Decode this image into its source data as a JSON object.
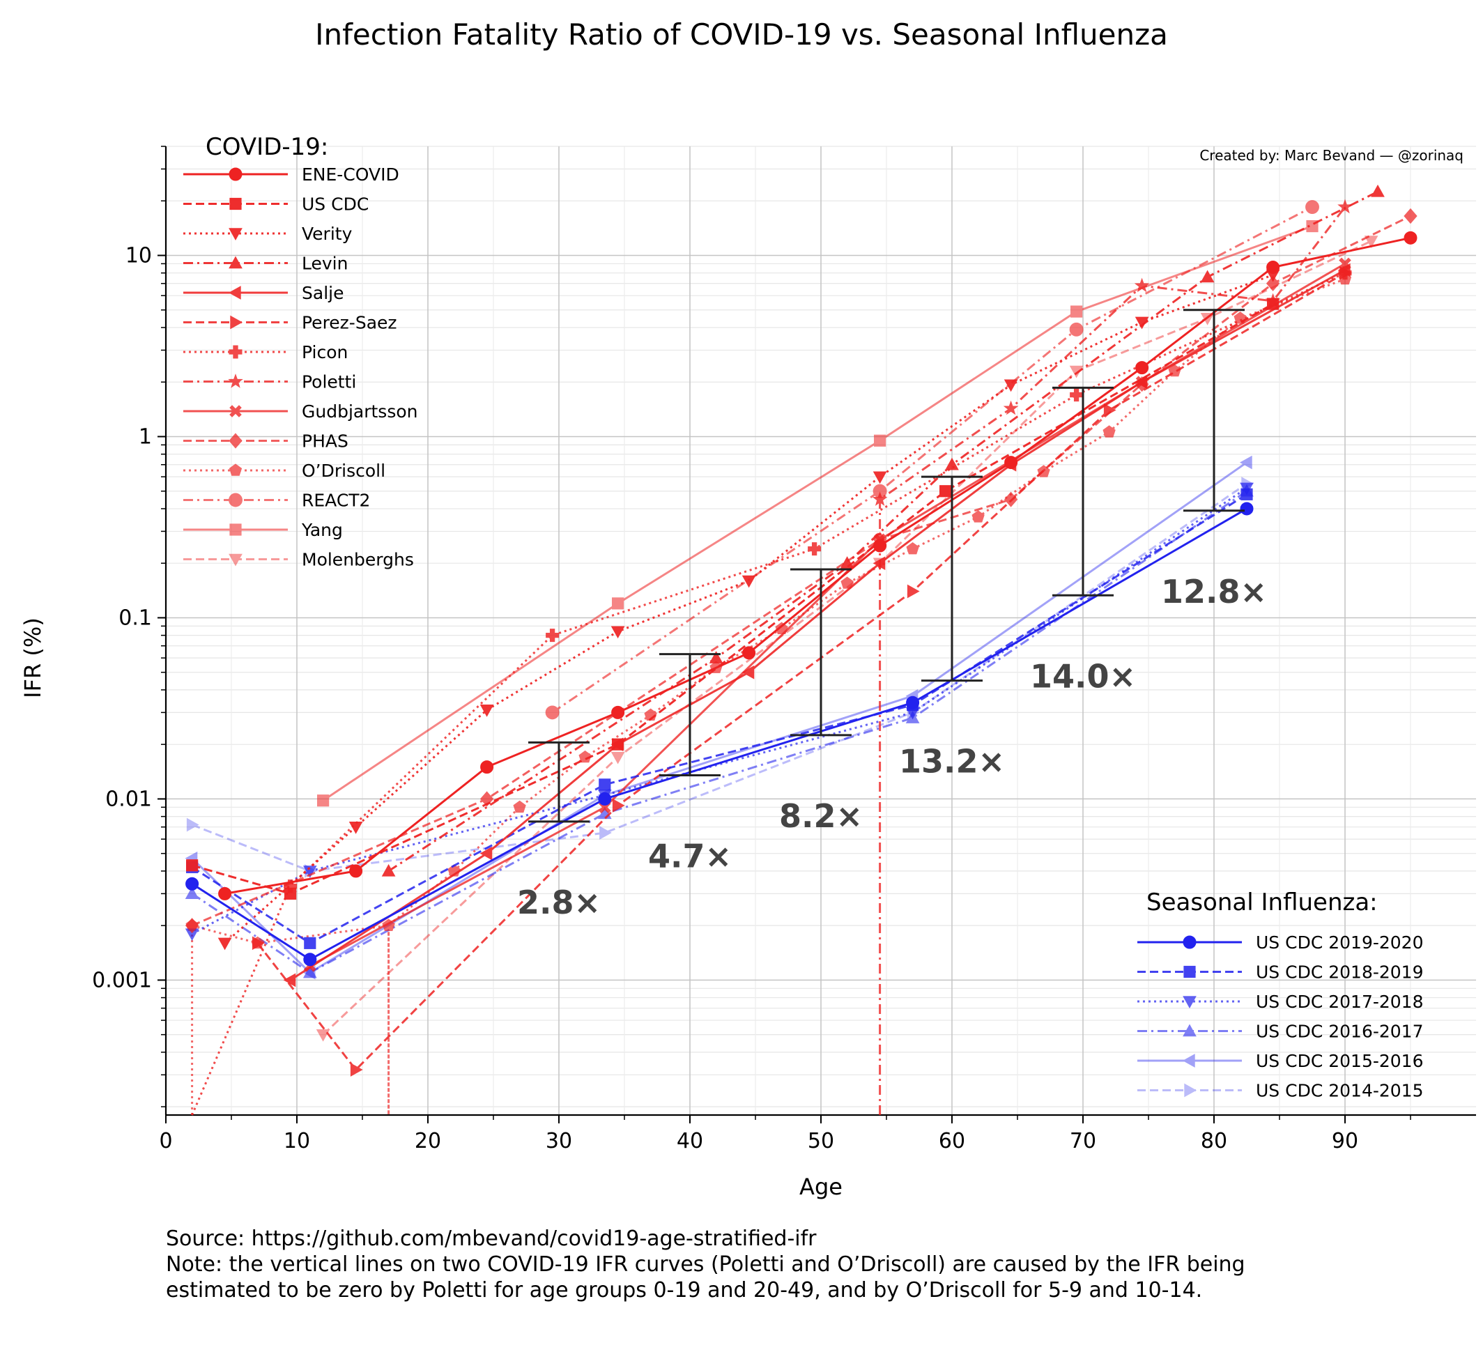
{
  "chart_data": {
    "type": "line",
    "title": "Infection Fatality Ratio of COVID-19 vs. Seasonal Influenza",
    "xlabel": "Age",
    "ylabel": "IFR (%)",
    "xlim": [
      0,
      100
    ],
    "ylim": [
      0.00018,
      40
    ],
    "yscale": "log",
    "grid": "on",
    "xticks": [
      0,
      10,
      20,
      30,
      40,
      50,
      60,
      70,
      80,
      90
    ],
    "xtick_labels": [
      "0",
      "10",
      "20",
      "30",
      "40",
      "50",
      "60",
      "70",
      "80",
      "90"
    ],
    "yticks": [
      0.001,
      0.01,
      0.1,
      1,
      10
    ],
    "ytick_labels": [
      "0.001",
      "0.01",
      "0.1",
      "1",
      "10"
    ],
    "credit": "Created by: Marc Bevand — @zorinaq",
    "legend_covid_title": "COVID-19:",
    "legend_flu_title": "Seasonal Influenza:",
    "legend_placement": {
      "covid": "upper-left",
      "flu": "lower-right"
    },
    "colors": {
      "covid": "#ee2222",
      "flu": "#2222ee",
      "ratio_bar": "#222222",
      "ratio_text": "#444444"
    },
    "series": [
      {
        "name": "ENE-COVID",
        "group": "covid",
        "marker": "circle",
        "dash": "solid",
        "alpha": 1.0,
        "points": [
          [
            4.5,
            0.003
          ],
          [
            14.5,
            0.004
          ],
          [
            24.5,
            0.015
          ],
          [
            34.5,
            0.03
          ],
          [
            44.5,
            0.064
          ],
          [
            54.5,
            0.25
          ],
          [
            64.5,
            0.72
          ],
          [
            74.5,
            2.4
          ],
          [
            84.5,
            8.6
          ],
          [
            95,
            12.5
          ]
        ]
      },
      {
        "name": "US CDC",
        "group": "covid",
        "marker": "square",
        "dash": "dashed",
        "alpha": 0.95,
        "points": [
          [
            2,
            0.0043
          ],
          [
            9.5,
            0.003
          ],
          [
            34.5,
            0.02
          ],
          [
            59.5,
            0.5
          ],
          [
            84.5,
            5.4
          ]
        ]
      },
      {
        "name": "Verity",
        "group": "covid",
        "marker": "tri-down",
        "dash": "dotted",
        "alpha": 0.92,
        "points": [
          [
            4.5,
            0.0016
          ],
          [
            14.5,
            0.007
          ],
          [
            24.5,
            0.031
          ],
          [
            34.5,
            0.084
          ],
          [
            44.5,
            0.16
          ],
          [
            54.5,
            0.6
          ],
          [
            64.5,
            1.93
          ],
          [
            74.5,
            4.28
          ],
          [
            84.5,
            7.8
          ]
        ]
      },
      {
        "name": "Levin",
        "group": "covid",
        "marker": "tri-up",
        "dash": "dashdot",
        "alpha": 0.9,
        "points": [
          [
            17,
            0.004
          ],
          [
            42,
            0.06
          ],
          [
            52,
            0.2
          ],
          [
            60,
            0.7
          ],
          [
            79.5,
            7.6
          ],
          [
            92.5,
            22.5
          ]
        ]
      },
      {
        "name": "Salje",
        "group": "covid",
        "marker": "tri-left",
        "dash": "solid",
        "alpha": 0.88,
        "points": [
          [
            9.5,
            0.001
          ],
          [
            24.5,
            0.005
          ],
          [
            34.5,
            0.02
          ],
          [
            44.5,
            0.05
          ],
          [
            54.5,
            0.2
          ],
          [
            64.5,
            0.7
          ],
          [
            74.5,
            2.0
          ],
          [
            90,
            8.3
          ]
        ]
      },
      {
        "name": "Perez-Saez",
        "group": "covid",
        "marker": "tri-right",
        "dash": "dashed",
        "alpha": 0.85,
        "points": [
          [
            7,
            0.0016
          ],
          [
            14.5,
            0.00032
          ],
          [
            34.5,
            0.0092
          ],
          [
            57,
            0.14
          ],
          [
            72,
            1.4
          ],
          [
            90,
            8.0
          ]
        ]
      },
      {
        "name": "Picon",
        "group": "covid",
        "marker": "plus",
        "dash": "dotted",
        "alpha": 0.82,
        "points": [
          [
            2,
            0.00018
          ],
          [
            9.5,
            0.0033
          ],
          [
            29.5,
            0.08
          ],
          [
            49.5,
            0.24
          ],
          [
            69.5,
            1.7
          ],
          [
            90,
            8.0
          ]
        ]
      },
      {
        "name": "Poletti",
        "group": "covid",
        "marker": "star",
        "dash": "dashdot",
        "alpha": 0.8,
        "points": [
          [
            54.5,
            0.00018
          ],
          [
            54.5,
            0.45
          ],
          [
            64.5,
            1.43
          ],
          [
            74.5,
            6.8
          ],
          [
            84.5,
            5.6
          ],
          [
            90,
            18.5
          ]
        ]
      },
      {
        "name": "Gudbjartsson",
        "group": "covid",
        "marker": "x",
        "dash": "solid",
        "alpha": 0.78,
        "points": [
          [
            11,
            0.0012
          ],
          [
            33.5,
            0.009
          ],
          [
            54.5,
            0.27
          ],
          [
            74.5,
            2.0
          ],
          [
            90,
            9.0
          ]
        ]
      },
      {
        "name": "PHAS",
        "group": "covid",
        "marker": "diamond",
        "dash": "dashed",
        "alpha": 0.72,
        "points": [
          [
            2,
            0.002
          ],
          [
            24.5,
            0.01
          ],
          [
            54.5,
            0.27
          ],
          [
            64.5,
            0.45
          ],
          [
            74.5,
            1.95
          ],
          [
            84.5,
            7.0
          ],
          [
            95,
            16.5
          ]
        ]
      },
      {
        "name": "O’Driscoll",
        "group": "covid",
        "marker": "pentagon",
        "dash": "dotted",
        "alpha": 0.68,
        "points": [
          [
            2,
            0.00018
          ],
          [
            2,
            0.002
          ],
          [
            7,
            0.0016
          ],
          [
            17,
            0.002
          ],
          [
            17,
            0.00018
          ],
          [
            17,
            0.002
          ],
          [
            22,
            0.004
          ],
          [
            27,
            0.009
          ],
          [
            32,
            0.017
          ],
          [
            37,
            0.029
          ],
          [
            42,
            0.053
          ],
          [
            47,
            0.087
          ],
          [
            52,
            0.155
          ],
          [
            57,
            0.24
          ],
          [
            62,
            0.36
          ],
          [
            67,
            0.64
          ],
          [
            72,
            1.06
          ],
          [
            77,
            2.3
          ],
          [
            82,
            4.5
          ],
          [
            90,
            7.4
          ]
        ]
      },
      {
        "name": "REACT2",
        "group": "covid",
        "marker": "octagon",
        "dash": "dashdot",
        "alpha": 0.62,
        "points": [
          [
            29.5,
            0.03
          ],
          [
            54.5,
            0.5
          ],
          [
            69.5,
            3.9
          ],
          [
            87.5,
            18.5
          ]
        ]
      },
      {
        "name": "Yang",
        "group": "covid",
        "marker": "square",
        "dash": "solid",
        "alpha": 0.55,
        "points": [
          [
            12,
            0.0098
          ],
          [
            34.5,
            0.12
          ],
          [
            54.5,
            0.95
          ],
          [
            69.5,
            4.9
          ],
          [
            87.5,
            14.5
          ]
        ]
      },
      {
        "name": "Molenberghs",
        "group": "covid",
        "marker": "tri-down",
        "dash": "dashed",
        "alpha": 0.45,
        "points": [
          [
            12,
            0.0005
          ],
          [
            34.5,
            0.017
          ],
          [
            54.5,
            0.2
          ],
          [
            69.5,
            2.3
          ],
          [
            79.5,
            4.5
          ],
          [
            92,
            12.0
          ]
        ]
      },
      {
        "name": "US CDC 2019-2020",
        "group": "flu",
        "marker": "circle",
        "dash": "solid",
        "alpha": 1.0,
        "points": [
          [
            2,
            0.0034
          ],
          [
            11,
            0.0013
          ],
          [
            33.5,
            0.01
          ],
          [
            57,
            0.034
          ],
          [
            82.5,
            0.4
          ]
        ]
      },
      {
        "name": "US CDC 2018-2019",
        "group": "flu",
        "marker": "square",
        "dash": "dashed",
        "alpha": 0.85,
        "points": [
          [
            2,
            0.0042
          ],
          [
            11,
            0.0016
          ],
          [
            33.5,
            0.012
          ],
          [
            57,
            0.033
          ],
          [
            82.5,
            0.48
          ]
        ]
      },
      {
        "name": "US CDC 2017-2018",
        "group": "flu",
        "marker": "tri-down",
        "dash": "dotted",
        "alpha": 0.7,
        "points": [
          [
            2,
            0.0018
          ],
          [
            11,
            0.004
          ],
          [
            33.5,
            0.0105
          ],
          [
            57,
            0.03
          ],
          [
            82.5,
            0.52
          ]
        ]
      },
      {
        "name": "US CDC 2016-2017",
        "group": "flu",
        "marker": "tri-up",
        "dash": "dashdot",
        "alpha": 0.58,
        "points": [
          [
            2,
            0.003
          ],
          [
            11,
            0.0011
          ],
          [
            33.5,
            0.0083
          ],
          [
            57,
            0.028
          ],
          [
            82.5,
            0.5
          ]
        ]
      },
      {
        "name": "US CDC 2015-2016",
        "group": "flu",
        "marker": "tri-left",
        "dash": "solid",
        "alpha": 0.42,
        "points": [
          [
            2,
            0.0047
          ],
          [
            11,
            0.0011
          ],
          [
            33.5,
            0.0105
          ],
          [
            57,
            0.037
          ],
          [
            82.5,
            0.72
          ]
        ]
      },
      {
        "name": "US CDC 2014-2015",
        "group": "flu",
        "marker": "tri-right",
        "dash": "dashed",
        "alpha": 0.3,
        "points": [
          [
            2,
            0.0072
          ],
          [
            11,
            0.004
          ],
          [
            33.5,
            0.0065
          ],
          [
            57,
            0.03
          ],
          [
            82.5,
            0.55
          ]
        ]
      }
    ],
    "ratio_bars": [
      {
        "age": 30,
        "low": 0.0075,
        "high": 0.0205,
        "label": "2.8×"
      },
      {
        "age": 40,
        "low": 0.0135,
        "high": 0.063,
        "label": "4.7×"
      },
      {
        "age": 50,
        "low": 0.0225,
        "high": 0.185,
        "label": "8.2×"
      },
      {
        "age": 60,
        "low": 0.045,
        "high": 0.6,
        "label": "13.2×"
      },
      {
        "age": 70,
        "low": 0.133,
        "high": 1.86,
        "label": "14.0×"
      },
      {
        "age": 80,
        "low": 0.39,
        "high": 5.0,
        "label": "12.8×"
      }
    ],
    "footnote_source": "Source: https://github.com/mbevand/covid19-age-stratified-ifr",
    "footnote_note_1": "Note: the vertical lines on two COVID-19 IFR curves (Poletti and O’Driscoll) are caused by the IFR being",
    "footnote_note_2": "estimated to be zero by Poletti for age groups 0-19 and 20-49, and by O’Driscoll for 5-9 and 10-14."
  }
}
